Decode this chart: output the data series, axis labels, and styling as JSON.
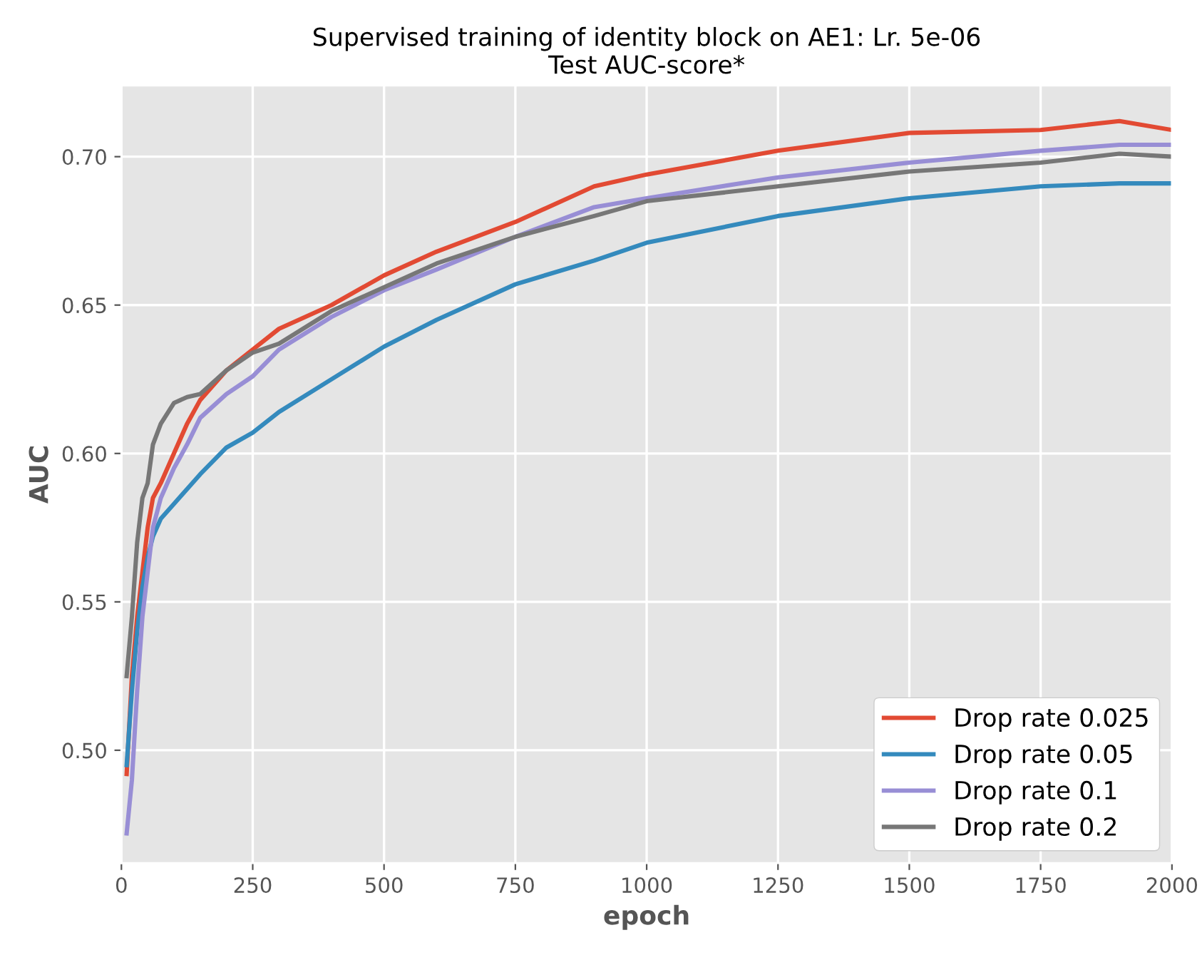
{
  "chart_data": {
    "type": "line",
    "title": "Supervised training of identity block on AE1: Lr. 5e-06\nTest AUC-score*",
    "xlabel": "epoch",
    "ylabel": "AUC",
    "x": [
      10,
      20,
      30,
      40,
      50,
      60,
      75,
      100,
      125,
      150,
      200,
      250,
      300,
      400,
      500,
      600,
      750,
      900,
      1000,
      1250,
      1500,
      1750,
      1900,
      2000
    ],
    "series": [
      {
        "name": "Drop rate 0.025",
        "color": "#e24a33",
        "values": [
          0.492,
          0.525,
          0.545,
          0.56,
          0.575,
          0.585,
          0.59,
          0.6,
          0.61,
          0.618,
          0.628,
          0.635,
          0.642,
          0.65,
          0.66,
          0.668,
          0.678,
          0.69,
          0.694,
          0.702,
          0.708,
          0.709,
          0.712,
          0.709
        ]
      },
      {
        "name": "Drop rate 0.05",
        "color": "#348abd",
        "values": [
          0.495,
          0.52,
          0.54,
          0.555,
          0.565,
          0.572,
          0.578,
          0.583,
          0.588,
          0.593,
          0.602,
          0.607,
          0.614,
          0.625,
          0.636,
          0.645,
          0.657,
          0.665,
          0.671,
          0.68,
          0.686,
          0.69,
          0.691,
          0.691
        ]
      },
      {
        "name": "Drop rate 0.1",
        "color": "#988ed5",
        "values": [
          0.472,
          0.49,
          0.52,
          0.545,
          0.56,
          0.575,
          0.585,
          0.595,
          0.603,
          0.612,
          0.62,
          0.626,
          0.635,
          0.646,
          0.655,
          0.662,
          0.673,
          0.683,
          0.686,
          0.693,
          0.698,
          0.702,
          0.704,
          0.704
        ]
      },
      {
        "name": "Drop rate 0.2",
        "color": "#777777",
        "values": [
          0.525,
          0.545,
          0.57,
          0.585,
          0.59,
          0.603,
          0.61,
          0.617,
          0.619,
          0.62,
          0.628,
          0.634,
          0.637,
          0.648,
          0.656,
          0.664,
          0.673,
          0.68,
          0.685,
          0.69,
          0.695,
          0.698,
          0.701,
          0.7
        ]
      }
    ],
    "xlim": [
      0,
      2000
    ],
    "ylim": [
      0.462,
      0.724
    ],
    "xticks": [
      0,
      250,
      500,
      750,
      1000,
      1250,
      1500,
      1750,
      2000
    ],
    "yticks": [
      {
        "value": 0.5,
        "label": "0.50"
      },
      {
        "value": 0.55,
        "label": "0.55"
      },
      {
        "value": 0.6,
        "label": "0.60"
      },
      {
        "value": 0.65,
        "label": "0.65"
      },
      {
        "value": 0.7,
        "label": "0.70"
      }
    ],
    "grid": true,
    "legend": "bottom right"
  }
}
